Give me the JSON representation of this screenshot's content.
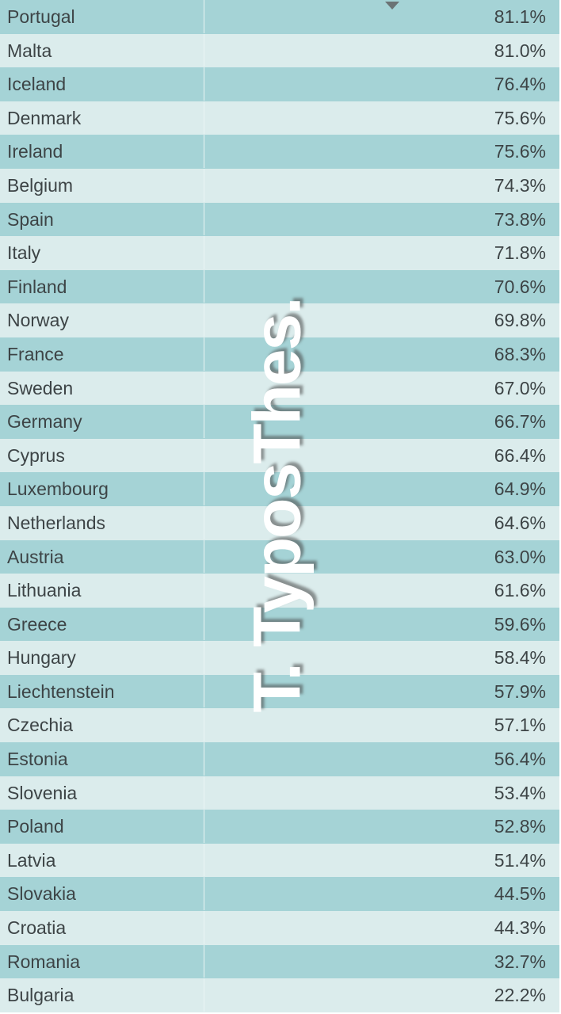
{
  "table": {
    "rows": [
      [
        "Portugal",
        "81.1%"
      ],
      [
        "Malta",
        "81.0%"
      ],
      [
        "Iceland",
        "76.4%"
      ],
      [
        "Denmark",
        "75.6%"
      ],
      [
        "Ireland",
        "75.6%"
      ],
      [
        "Belgium",
        "74.3%"
      ],
      [
        "Spain",
        "73.8%"
      ],
      [
        "Italy",
        "71.8%"
      ],
      [
        "Finland",
        "70.6%"
      ],
      [
        "Norway",
        "69.8%"
      ],
      [
        "France",
        "68.3%"
      ],
      [
        "Sweden",
        "67.0%"
      ],
      [
        "Germany",
        "66.7%"
      ],
      [
        "Cyprus",
        "66.4%"
      ],
      [
        "Luxembourg",
        "64.9%"
      ],
      [
        "Netherlands",
        "64.6%"
      ],
      [
        "Austria",
        "63.0%"
      ],
      [
        "Lithuania",
        "61.6%"
      ],
      [
        "Greece",
        "59.6%"
      ],
      [
        "Hungary",
        "58.4%"
      ],
      [
        "Liechtenstein",
        "57.9%"
      ],
      [
        "Czechia",
        "57.1%"
      ],
      [
        "Estonia",
        "56.4%"
      ],
      [
        "Slovenia",
        "53.4%"
      ],
      [
        "Poland",
        "52.8%"
      ],
      [
        "Latvia",
        "51.4%"
      ],
      [
        "Slovakia",
        "44.5%"
      ],
      [
        "Croatia",
        "44.3%"
      ],
      [
        "Romania",
        "32.7%"
      ],
      [
        "Bulgaria",
        "22.2%"
      ]
    ]
  },
  "watermark": "T. TyposThes."
}
